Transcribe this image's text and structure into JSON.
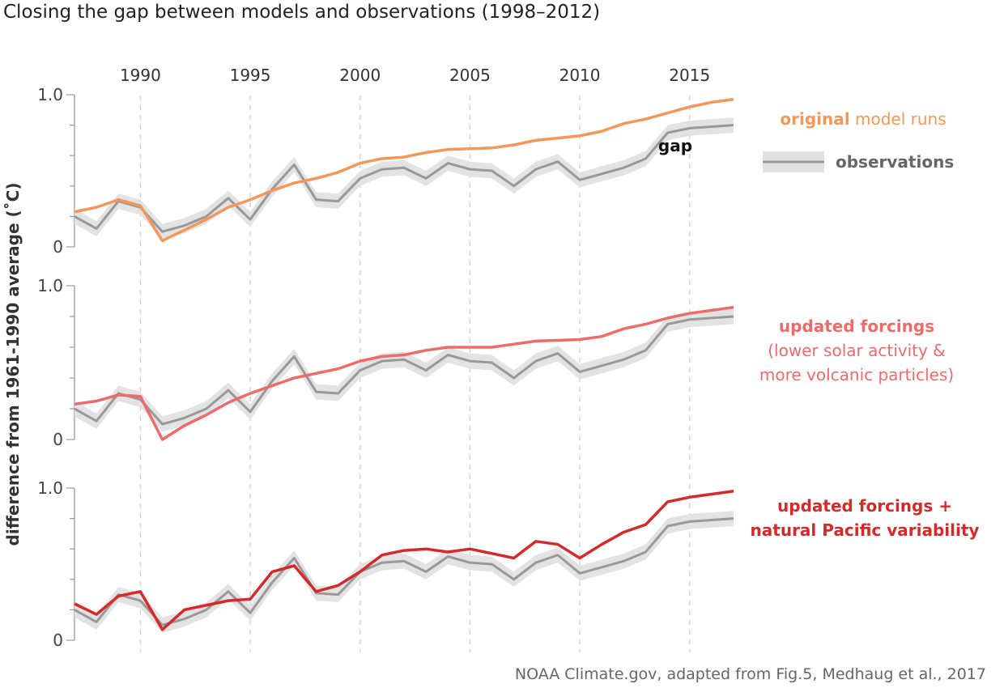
{
  "title": "Closing the gap between models and observations (1998–2012)",
  "credit": "NOAA Climate.gov, adapted from Fig.5, Medhaug et al., 2017",
  "colors": {
    "original": "#f4975a",
    "updated": "#ec6b6b",
    "pacific": "#d42a2a",
    "observations": "#999999",
    "band": "#e3e3e3"
  },
  "chart_data": {
    "type": "line",
    "ylabel": "difference from 1961-1990 average (˚C)",
    "x_ticks": [
      "1990",
      "1995",
      "2000",
      "2005",
      "2010",
      "2015"
    ],
    "xlim": [
      1987,
      2017
    ],
    "grid": "vertical dashed lines at x ticks",
    "panels": [
      {
        "y_ticks": [
          "1.0",
          "0"
        ],
        "ylim": [
          0,
          1.0
        ],
        "legend": {
          "series_bold": "original",
          "series_rest": "model runs",
          "obs_label": "observations",
          "annotation": "gap"
        },
        "series": [
          {
            "name": "original model runs",
            "key": "original",
            "x": [
              1987,
              1988,
              1989,
              1990,
              1991,
              1992,
              1993,
              1994,
              1995,
              1996,
              1997,
              1998,
              1999,
              2000,
              2001,
              2002,
              2003,
              2004,
              2005,
              2006,
              2007,
              2008,
              2009,
              2010,
              2011,
              2012,
              2013,
              2014,
              2015,
              2016,
              2017
            ],
            "values": [
              0.23,
              0.26,
              0.31,
              0.27,
              0.04,
              0.11,
              0.18,
              0.26,
              0.31,
              0.37,
              0.42,
              0.45,
              0.49,
              0.55,
              0.58,
              0.59,
              0.62,
              0.64,
              0.645,
              0.65,
              0.67,
              0.7,
              0.715,
              0.73,
              0.76,
              0.81,
              0.84,
              0.88,
              0.92,
              0.95,
              0.97
            ]
          },
          {
            "name": "observations",
            "key": "observations",
            "x": [
              1987,
              1988,
              1989,
              1990,
              1991,
              1992,
              1993,
              1994,
              1995,
              1996,
              1997,
              1998,
              1999,
              2000,
              2001,
              2002,
              2003,
              2004,
              2005,
              2006,
              2007,
              2008,
              2009,
              2010,
              2011,
              2012,
              2013,
              2014,
              2015,
              2016,
              2017
            ],
            "values": [
              0.2,
              0.12,
              0.3,
              0.26,
              0.1,
              0.14,
              0.2,
              0.32,
              0.18,
              0.38,
              0.54,
              0.31,
              0.3,
              0.45,
              0.51,
              0.52,
              0.45,
              0.55,
              0.51,
              0.5,
              0.4,
              0.51,
              0.56,
              0.44,
              0.48,
              0.52,
              0.58,
              0.75,
              0.78,
              0.79,
              0.8
            ]
          }
        ]
      },
      {
        "y_ticks": [
          "1.0",
          "0"
        ],
        "ylim": [
          0,
          1.0
        ],
        "legend": {
          "lines": [
            "updated forcings",
            "(lower solar activity &",
            "more volcanic particles)"
          ]
        },
        "series": [
          {
            "name": "updated forcings",
            "key": "updated",
            "x": [
              1987,
              1988,
              1989,
              1990,
              1991,
              1992,
              1993,
              1994,
              1995,
              1996,
              1997,
              1998,
              1999,
              2000,
              2001,
              2002,
              2003,
              2004,
              2005,
              2006,
              2007,
              2008,
              2009,
              2010,
              2011,
              2012,
              2013,
              2014,
              2015,
              2016,
              2017
            ],
            "values": [
              0.23,
              0.25,
              0.29,
              0.28,
              0.0,
              0.09,
              0.16,
              0.24,
              0.3,
              0.35,
              0.4,
              0.43,
              0.46,
              0.51,
              0.54,
              0.55,
              0.58,
              0.6,
              0.6,
              0.6,
              0.62,
              0.64,
              0.645,
              0.65,
              0.67,
              0.72,
              0.75,
              0.79,
              0.82,
              0.84,
              0.86
            ]
          },
          {
            "name": "observations",
            "key": "observations",
            "x": [
              1987,
              1988,
              1989,
              1990,
              1991,
              1992,
              1993,
              1994,
              1995,
              1996,
              1997,
              1998,
              1999,
              2000,
              2001,
              2002,
              2003,
              2004,
              2005,
              2006,
              2007,
              2008,
              2009,
              2010,
              2011,
              2012,
              2013,
              2014,
              2015,
              2016,
              2017
            ],
            "values": [
              0.2,
              0.12,
              0.3,
              0.26,
              0.1,
              0.14,
              0.2,
              0.32,
              0.18,
              0.38,
              0.54,
              0.31,
              0.3,
              0.45,
              0.51,
              0.52,
              0.45,
              0.55,
              0.51,
              0.5,
              0.4,
              0.51,
              0.56,
              0.44,
              0.48,
              0.52,
              0.58,
              0.75,
              0.78,
              0.79,
              0.8
            ]
          }
        ]
      },
      {
        "y_ticks": [
          "1.0",
          "0"
        ],
        "ylim": [
          0,
          1.0
        ],
        "legend": {
          "lines": [
            "updated forcings +",
            "natural Pacific variability"
          ]
        },
        "series": [
          {
            "name": "updated forcings + natural Pacific variability",
            "key": "pacific",
            "x": [
              1987,
              1988,
              1989,
              1990,
              1991,
              1992,
              1993,
              1994,
              1995,
              1996,
              1997,
              1998,
              1999,
              2000,
              2001,
              2002,
              2003,
              2004,
              2005,
              2006,
              2007,
              2008,
              2009,
              2010,
              2011,
              2012,
              2013,
              2014,
              2015,
              2016,
              2017
            ],
            "values": [
              0.24,
              0.17,
              0.29,
              0.32,
              0.07,
              0.2,
              0.23,
              0.26,
              0.27,
              0.45,
              0.49,
              0.32,
              0.36,
              0.45,
              0.56,
              0.59,
              0.6,
              0.58,
              0.6,
              0.57,
              0.54,
              0.65,
              0.63,
              0.54,
              0.63,
              0.71,
              0.76,
              0.91,
              0.94,
              0.96,
              0.98
            ]
          },
          {
            "name": "observations",
            "key": "observations",
            "x": [
              1987,
              1988,
              1989,
              1990,
              1991,
              1992,
              1993,
              1994,
              1995,
              1996,
              1997,
              1998,
              1999,
              2000,
              2001,
              2002,
              2003,
              2004,
              2005,
              2006,
              2007,
              2008,
              2009,
              2010,
              2011,
              2012,
              2013,
              2014,
              2015,
              2016,
              2017
            ],
            "values": [
              0.2,
              0.12,
              0.3,
              0.26,
              0.1,
              0.14,
              0.2,
              0.32,
              0.18,
              0.38,
              0.54,
              0.31,
              0.3,
              0.45,
              0.51,
              0.52,
              0.45,
              0.55,
              0.51,
              0.5,
              0.4,
              0.51,
              0.56,
              0.44,
              0.48,
              0.52,
              0.58,
              0.75,
              0.78,
              0.79,
              0.8
            ]
          }
        ]
      }
    ]
  }
}
